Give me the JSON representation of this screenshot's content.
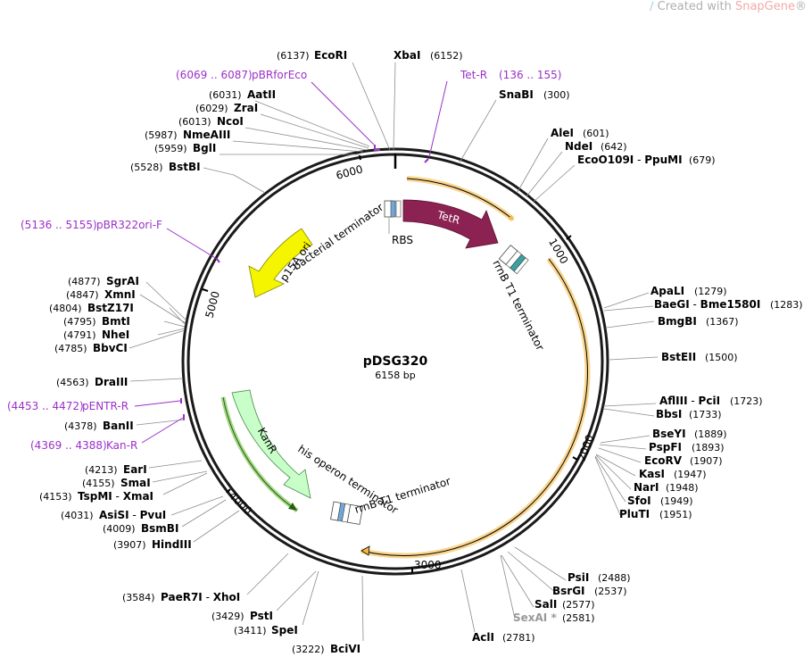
{
  "watermark": {
    "prefix": "Created with ",
    "brand": "SnapGene",
    "suffix": "®"
  },
  "plasmid": {
    "name": "pDSG320",
    "size": "6158 bp"
  },
  "ticks": [
    "1000",
    "2000",
    "3000",
    "4000",
    "5000",
    "6000"
  ],
  "features": {
    "tetr": "TetR",
    "p15a": "p15A ori",
    "kanr": "KanR",
    "rbs": "RBS",
    "rrnb1": "rrnB T1 terminator",
    "bact_term": "bacterial terminator",
    "his_term": "his operon terminator",
    "rrnb2": "rrnB T1 terminator"
  },
  "sites": [
    {
      "name": "EcoRI",
      "pos": "(6137)"
    },
    {
      "name": "XbaI",
      "pos": "(6152)"
    },
    {
      "name": "AatII",
      "pos": "(6031)"
    },
    {
      "name": "ZraI",
      "pos": "(6029)"
    },
    {
      "name": "NcoI",
      "pos": "(6013)"
    },
    {
      "name": "NmeAIII",
      "pos": "(5987)"
    },
    {
      "name": "BglI",
      "pos": "(5959)"
    },
    {
      "name": "BstBI",
      "pos": "(5528)"
    },
    {
      "name": "SnaBI",
      "pos": "(300)"
    },
    {
      "name": "AleI",
      "pos": "(601)"
    },
    {
      "name": "NdeI",
      "pos": "(642)"
    },
    {
      "name": "EcoO109I",
      "sep": " - ",
      "name2": "PpuMI",
      "pos": "(679)"
    },
    {
      "name": "ApaLI",
      "pos": "(1279)"
    },
    {
      "name": "BaeGI",
      "sep": " - ",
      "name2": "Bme1580I",
      "pos": "(1283)"
    },
    {
      "name": "BmgBI",
      "pos": "(1367)"
    },
    {
      "name": "BstEII",
      "pos": "(1500)"
    },
    {
      "name": "AflIII",
      "sep": " - ",
      "name2": "PciI",
      "pos": "(1723)"
    },
    {
      "name": "BbsI",
      "pos": "(1733)"
    },
    {
      "name": "BseYI",
      "pos": "(1889)"
    },
    {
      "name": "PspFI",
      "pos": "(1893)"
    },
    {
      "name": "EcoRV",
      "pos": "(1907)"
    },
    {
      "name": "KasI",
      "pos": "(1947)"
    },
    {
      "name": "NarI",
      "pos": "(1948)"
    },
    {
      "name": "SfoI",
      "pos": "(1949)"
    },
    {
      "name": "PluTI",
      "pos": "(1951)"
    },
    {
      "name": "PsiI",
      "pos": "(2488)"
    },
    {
      "name": "BsrGI",
      "pos": "(2537)"
    },
    {
      "name": "SalI",
      "pos": "(2577)"
    },
    {
      "name": "SexAI *",
      "pos": "(2581)"
    },
    {
      "name": "AclI",
      "pos": "(2781)"
    },
    {
      "name": "BciVI",
      "pos": "(3222)"
    },
    {
      "name": "SpeI",
      "pos": "(3411)"
    },
    {
      "name": "PstI",
      "pos": "(3429)"
    },
    {
      "name": "PaeR7I",
      "sep": " - ",
      "name2": "XhoI",
      "pos": "(3584)"
    },
    {
      "name": "HindIII",
      "pos": "(3907)"
    },
    {
      "name": "BsmBI",
      "pos": "(4009)"
    },
    {
      "name": "AsiSI",
      "sep": " - ",
      "name2": "PvuI",
      "pos": "(4031)"
    },
    {
      "name": "TspMI",
      "sep": " - ",
      "name2": "XmaI",
      "pos": "(4153)"
    },
    {
      "name": "SmaI",
      "pos": "(4155)"
    },
    {
      "name": "EarI",
      "pos": "(4213)"
    },
    {
      "name": "BanII",
      "pos": "(4378)"
    },
    {
      "name": "DraIII",
      "pos": "(4563)"
    },
    {
      "name": "BbvCI",
      "pos": "(4785)"
    },
    {
      "name": "NheI",
      "pos": "(4791)"
    },
    {
      "name": "BmtI",
      "pos": "(4795)"
    },
    {
      "name": "BstZ17I",
      "pos": "(4804)"
    },
    {
      "name": "XmnI",
      "pos": "(4847)"
    },
    {
      "name": "SgrAI",
      "pos": "(4877)"
    }
  ],
  "primers": [
    {
      "name": "pBRforEco",
      "range": "(6069 .. 6087)"
    },
    {
      "name": "Tet-R",
      "range": "(136 .. 155)"
    },
    {
      "name": "pBR322ori-F",
      "range": "(5136 .. 5155)"
    },
    {
      "name": "pENTR-R",
      "range": "(4453 .. 4472)"
    },
    {
      "name": "Kan-R",
      "range": "(4369 .. 4388)"
    }
  ],
  "colors": {
    "tetr": "#8b2252",
    "p15a": "#f5f500",
    "kanr": "#c8ffc8",
    "primer": "#9b30c8",
    "orf_orange": "#f5b942",
    "teal": "#3aa0a0",
    "blue": "#6fa8dc"
  }
}
